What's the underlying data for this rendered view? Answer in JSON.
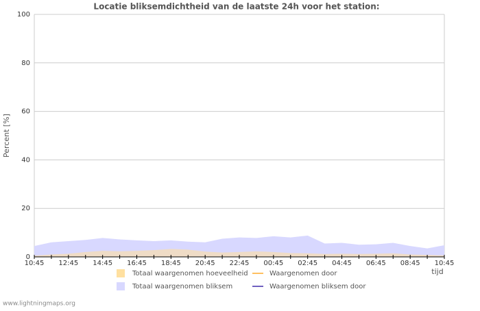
{
  "chart_data": {
    "type": "area",
    "title": "Locatie bliksemdichtheid van de laatste 24h voor het station:",
    "y_label": "Percent   [%]",
    "x_label": "tijd",
    "footer": "www.lightningmaps.org",
    "categories": [
      "10:45",
      null,
      "12:45",
      null,
      "14:45",
      null,
      "16:45",
      null,
      "18:45",
      null,
      "20:45",
      null,
      "22:45",
      null,
      "00:45",
      null,
      "02:45",
      null,
      "04:45",
      null,
      "06:45",
      null,
      "08:45",
      null,
      "10:45"
    ],
    "ylim": [
      0,
      100
    ],
    "yticks": [
      0,
      20,
      40,
      60,
      80,
      100
    ],
    "grid": true,
    "series": [
      {
        "name": "Totaal waargenomen bliksem",
        "color": "#d8d8ff",
        "values": [
          4.5,
          6,
          6.5,
          7,
          7.8,
          7.2,
          6.8,
          6.5,
          6.8,
          6.3,
          6,
          7.5,
          8,
          7.8,
          8.5,
          8,
          8.8,
          5.5,
          5.8,
          5,
          5.2,
          5.8,
          4.5,
          3.5,
          4.8
        ]
      },
      {
        "name": "Totaal waargenomen hoeveelheid",
        "color": "#ffe0a0",
        "values": [
          0.5,
          1,
          1.3,
          2,
          2.5,
          2.3,
          2.5,
          2.8,
          3.3,
          3,
          2.2,
          1.8,
          2,
          2.3,
          2,
          1.6,
          1.5,
          1.2,
          1.3,
          1.2,
          1.3,
          1.5,
          1,
          0.8,
          0.6
        ]
      },
      {
        "name": "Waargenomen door",
        "color": "#ffc060",
        "values": [
          null,
          null,
          null,
          null,
          null,
          null,
          null,
          null,
          null,
          null,
          null,
          null,
          null,
          null,
          null,
          null,
          null,
          null,
          null,
          null,
          null,
          null,
          null,
          null,
          null
        ]
      },
      {
        "name": "Waargenomen bliksem door",
        "color": "#7060c0",
        "values": [
          null,
          null,
          null,
          null,
          null,
          null,
          null,
          null,
          null,
          null,
          null,
          null,
          null,
          null,
          null,
          null,
          null,
          null,
          null,
          null,
          null,
          null,
          null,
          null,
          null
        ]
      }
    ]
  }
}
